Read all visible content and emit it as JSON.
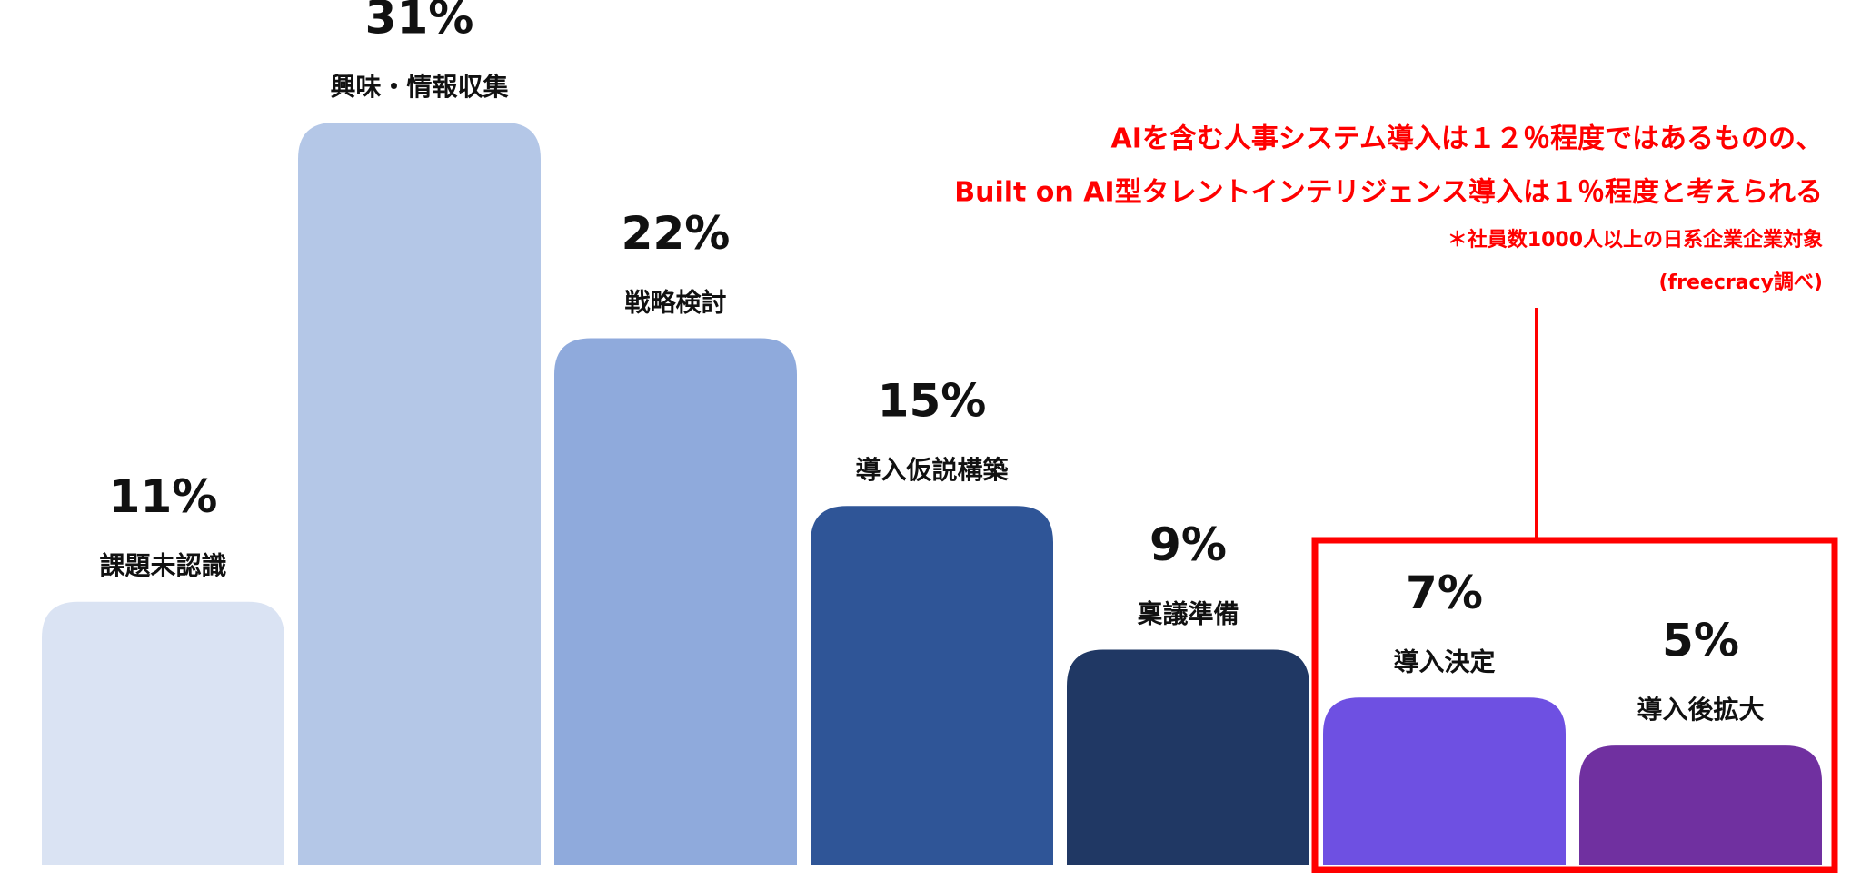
{
  "chart_data": {
    "type": "bar",
    "categories": [
      "課題未認識",
      "興味・情報収集",
      "戦略検討",
      "導入仮説構築",
      "稟議準備",
      "導入決定",
      "導入後拡大"
    ],
    "values": [
      11,
      31,
      22,
      15,
      9,
      7,
      5
    ],
    "value_labels": [
      "11%",
      "31%",
      "22%",
      "15%",
      "9%",
      "7%",
      "5%"
    ],
    "colors": [
      "#dae3f3",
      "#b4c7e7",
      "#8faadc",
      "#2f5597",
      "#203864",
      "#6e50e2",
      "#7030a0"
    ],
    "annotations": [
      "AIを含む人事システム導入は１２％程度ではあるものの、",
      "Built on AI型タレントインテリジェンス導入は１％程度と考えられる",
      "＊社員数1000人以上の日系企業企業対象",
      "(freecracy調べ)"
    ],
    "highlight_color": "#ff0000"
  }
}
